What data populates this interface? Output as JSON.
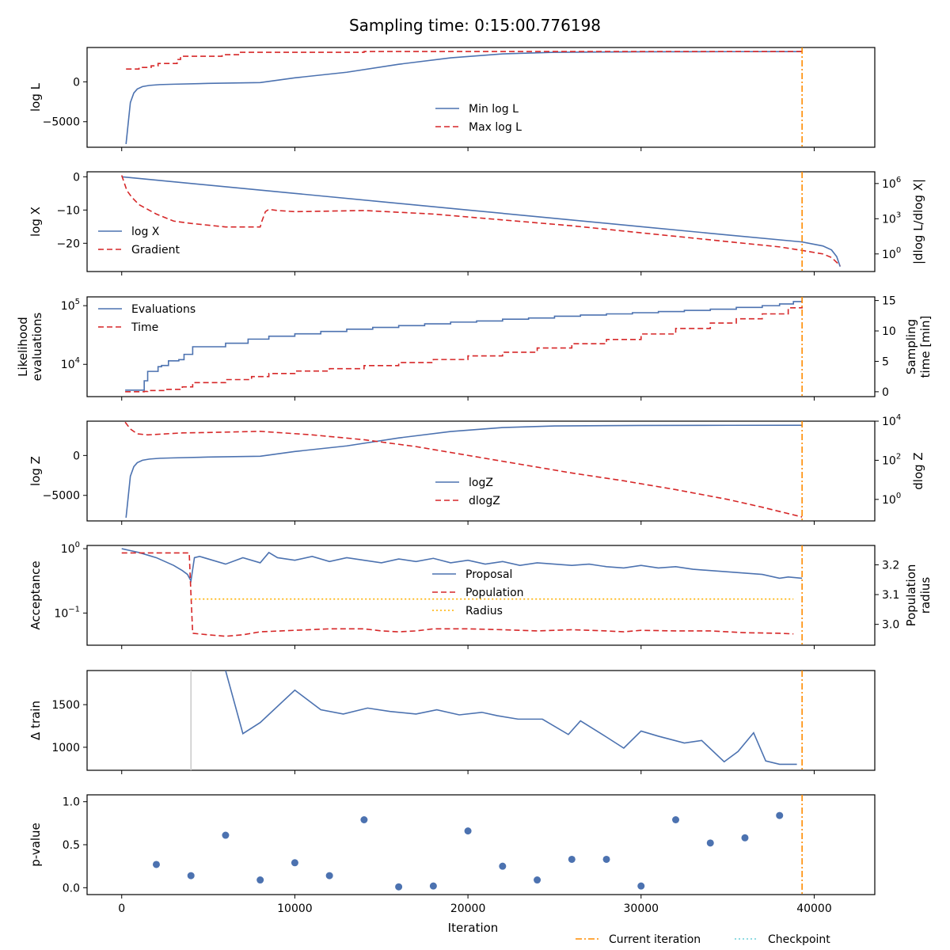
{
  "title": "Sampling time: 0:15:00.776198",
  "colors": {
    "blue": "#4c72b0",
    "red": "#d62728",
    "orange": "#ff8c00",
    "yellow": "#ffb000",
    "cyan": "#6ccfd8",
    "grey": "#c8c8c8"
  },
  "chart_data": [
    {
      "id": "logl",
      "type": "line",
      "ylabel": "log L",
      "xlim": [
        -2000,
        43500
      ],
      "ylim": [
        -8200,
        4300
      ],
      "yticks": [
        {
          "v": 0,
          "t": "0"
        },
        {
          "v": -5000,
          "t": "−5000"
        }
      ],
      "legend": {
        "position": "lower-center",
        "entries": [
          "Min log L",
          "Max log L"
        ]
      },
      "current_iteration": 39300,
      "series": [
        {
          "name": "Min log L",
          "style": "solid",
          "color": "blue",
          "x": [
            250,
            500,
            700,
            900,
            1200,
            1600,
            2200,
            3000,
            5000,
            8000,
            10000,
            13000,
            16000,
            19000,
            22000,
            25000,
            30000,
            35000,
            39300
          ],
          "y": [
            -7800,
            -2600,
            -1400,
            -900,
            -600,
            -450,
            -350,
            -300,
            -200,
            -100,
            500,
            1200,
            2200,
            3000,
            3500,
            3700,
            3760,
            3780,
            3790
          ]
        },
        {
          "name": "Max log L",
          "style": "dashed",
          "color": "red",
          "x": [
            250,
            1000,
            1000,
            1700,
            1700,
            2100,
            2100,
            3200,
            3200,
            3400,
            3400,
            5800,
            5800,
            6800,
            6800,
            14000,
            14000,
            39300
          ],
          "y": [
            1600,
            1600,
            1800,
            1800,
            2000,
            2000,
            2300,
            2300,
            2800,
            2800,
            3200,
            3200,
            3400,
            3400,
            3700,
            3700,
            3800,
            3800
          ]
        }
      ]
    },
    {
      "id": "logx",
      "type": "line",
      "ylabel": "log X",
      "ylabel2": "|dlog L/dlog X|",
      "xlim": [
        -2000,
        43500
      ],
      "ylim": [
        -28.5,
        1.5
      ],
      "yticks": [
        {
          "v": 0,
          "t": "0"
        },
        {
          "v": -10,
          "t": "−10"
        },
        {
          "v": -20,
          "t": "−20"
        }
      ],
      "y2_log": true,
      "y2lim_log10": [
        -1.5,
        7
      ],
      "y2ticks": [
        {
          "e": 6,
          "t": "10"
        },
        {
          "e": 3,
          "t": "10"
        },
        {
          "e": 0,
          "t": "10"
        }
      ],
      "legend": {
        "position": "lower-left",
        "entries": [
          "log X",
          "Gradient"
        ]
      },
      "current_iteration": 39300,
      "series": [
        {
          "name": "log X",
          "style": "solid",
          "color": "blue",
          "x": [
            0,
            5000,
            10000,
            15000,
            20000,
            25000,
            30000,
            35000,
            39300,
            40500,
            41000,
            41300,
            41500
          ],
          "y": [
            0,
            -2.5,
            -5.0,
            -7.5,
            -10.0,
            -12.5,
            -15.0,
            -17.5,
            -19.6,
            -20.8,
            -22.0,
            -24.0,
            -27.0
          ]
        },
        {
          "name": "Gradient",
          "style": "dashed",
          "color": "red",
          "axis": "y2",
          "x": [
            0,
            300,
            600,
            1000,
            2000,
            3000,
            4000,
            6000,
            8000,
            8100,
            8300,
            8500,
            9000,
            10000,
            14000,
            18000,
            22000,
            26000,
            30000,
            34000,
            38000,
            39300,
            40500,
            41000,
            41500
          ],
          "y_log10": [
            6.7,
            5.4,
            4.8,
            4.2,
            3.4,
            2.8,
            2.6,
            2.3,
            2.3,
            2.8,
            3.6,
            3.8,
            3.7,
            3.6,
            3.7,
            3.4,
            2.9,
            2.4,
            1.8,
            1.2,
            0.6,
            0.3,
            0.0,
            -0.3,
            -1.0
          ]
        }
      ]
    },
    {
      "id": "evals",
      "type": "line",
      "ylabel": "Likelihood evaluations",
      "ylabel2": "Sampling time [min]",
      "xlim": [
        -2000,
        43500
      ],
      "y_log": true,
      "ylim_log10": [
        3.45,
        5.15
      ],
      "yticks": [
        {
          "e": 5,
          "t": "10"
        },
        {
          "e": 4,
          "t": "10"
        }
      ],
      "y2lim": [
        -0.8,
        15.6
      ],
      "y2ticks": [
        {
          "v": 15,
          "t": "15"
        },
        {
          "v": 10,
          "t": "10"
        },
        {
          "v": 5,
          "t": "5"
        },
        {
          "v": 0,
          "t": "0"
        }
      ],
      "legend": {
        "position": "top-left",
        "entries": [
          "Evaluations",
          "Time"
        ]
      },
      "current_iteration": 39300,
      "series": [
        {
          "name": "Evaluations",
          "style": "steps",
          "color": "blue",
          "x": [
            200,
            1300,
            1500,
            2100,
            2300,
            2700,
            3300,
            3600,
            4100,
            6000,
            7300,
            8500,
            10000,
            11500,
            13000,
            14500,
            16000,
            17500,
            19000,
            20500,
            22000,
            23500,
            25000,
            26500,
            28000,
            29500,
            31000,
            32500,
            34000,
            35500,
            37000,
            38000,
            38800,
            39300
          ],
          "y_log10": [
            3.56,
            3.72,
            3.88,
            3.96,
            3.98,
            4.06,
            4.08,
            4.17,
            4.3,
            4.36,
            4.43,
            4.48,
            4.52,
            4.56,
            4.6,
            4.63,
            4.66,
            4.69,
            4.72,
            4.74,
            4.77,
            4.79,
            4.82,
            4.84,
            4.86,
            4.88,
            4.9,
            4.92,
            4.94,
            4.97,
            5.0,
            5.03,
            5.07,
            5.09
          ]
        },
        {
          "name": "Time",
          "style": "steps-dashed",
          "color": "red",
          "axis": "y2",
          "x": [
            200,
            1300,
            1500,
            2500,
            3500,
            4100,
            6000,
            7500,
            8500,
            10000,
            12000,
            14000,
            16000,
            18000,
            20000,
            22000,
            24000,
            26000,
            28000,
            30000,
            32000,
            34000,
            35500,
            37000,
            38500,
            39300
          ],
          "y": [
            0.0,
            0.05,
            0.2,
            0.4,
            0.8,
            1.5,
            2.0,
            2.5,
            3.0,
            3.4,
            3.8,
            4.3,
            4.8,
            5.3,
            5.9,
            6.5,
            7.2,
            7.9,
            8.6,
            9.5,
            10.4,
            11.3,
            12.0,
            12.8,
            13.8,
            15.0
          ]
        }
      ]
    },
    {
      "id": "logz",
      "type": "line",
      "ylabel": "log Z",
      "ylabel2": "dlog Z",
      "xlim": [
        -2000,
        43500
      ],
      "ylim": [
        -8200,
        4300
      ],
      "yticks": [
        {
          "v": 0,
          "t": "0"
        },
        {
          "v": -5000,
          "t": "−5000"
        }
      ],
      "y2_log": true,
      "y2lim_log10": [
        -1.1,
        4.0
      ],
      "y2ticks": [
        {
          "e": 4,
          "t": "10"
        },
        {
          "e": 2,
          "t": "10"
        },
        {
          "e": 0,
          "t": "10"
        }
      ],
      "legend": {
        "position": "lower-center",
        "entries": [
          "logZ",
          "dlogZ"
        ]
      },
      "current_iteration": 39300,
      "series": [
        {
          "name": "logZ",
          "style": "solid",
          "color": "blue",
          "x": [
            250,
            500,
            700,
            900,
            1200,
            1600,
            2200,
            3000,
            5000,
            8000,
            10000,
            13000,
            16000,
            19000,
            22000,
            25000,
            30000,
            35000,
            39300
          ],
          "y": [
            -7800,
            -2600,
            -1400,
            -900,
            -600,
            -450,
            -350,
            -300,
            -200,
            -100,
            500,
            1200,
            2200,
            3000,
            3500,
            3700,
            3760,
            3780,
            3790
          ]
        },
        {
          "name": "dlogZ",
          "style": "dashed",
          "color": "red",
          "axis": "y2",
          "x": [
            200,
            500,
            900,
            1500,
            3500,
            5000,
            8000,
            11000,
            14000,
            17000,
            20000,
            23000,
            26000,
            29000,
            32000,
            35000,
            37000,
            39300
          ],
          "y_log10": [
            3.95,
            3.6,
            3.35,
            3.3,
            3.4,
            3.42,
            3.48,
            3.3,
            3.05,
            2.7,
            2.25,
            1.8,
            1.35,
            0.95,
            0.5,
            0.0,
            -0.4,
            -0.9
          ]
        }
      ]
    },
    {
      "id": "accept",
      "type": "line",
      "ylabel": "Acceptance",
      "ylabel2": "Population radius",
      "xlim": [
        -2000,
        43500
      ],
      "y_log": true,
      "ylim_log10": [
        -1.5,
        0.05
      ],
      "yticks": [
        {
          "e": 0,
          "t": "10"
        },
        {
          "e": -1,
          "t": "10"
        }
      ],
      "y2lim": [
        2.93,
        3.265
      ],
      "y2ticks": [
        {
          "v": 3.2,
          "t": "3.2"
        },
        {
          "v": 3.1,
          "t": "3.1"
        },
        {
          "v": 3.0,
          "t": "3.0"
        }
      ],
      "legend": {
        "position": "center",
        "entries": [
          "Proposal",
          "Population",
          "Radius"
        ]
      },
      "current_iteration": 39300,
      "series": [
        {
          "name": "Proposal",
          "style": "solid",
          "color": "blue",
          "x": [
            0,
            500,
            1000,
            1500,
            2000,
            2500,
            3000,
            3500,
            3800,
            4000,
            4200,
            4500,
            5000,
            6000,
            7000,
            8000,
            8500,
            9000,
            10000,
            11000,
            12000,
            13000,
            14000,
            15000,
            16000,
            17000,
            18000,
            19000,
            20000,
            21000,
            22000,
            23000,
            24000,
            25000,
            26000,
            27000,
            28000,
            29000,
            30000,
            31000,
            32000,
            33000,
            34000,
            35000,
            36000,
            37000,
            38000,
            38500,
            39300
          ],
          "y_log10": [
            0.0,
            -0.03,
            -0.06,
            -0.1,
            -0.14,
            -0.2,
            -0.26,
            -0.34,
            -0.4,
            -0.5,
            -0.14,
            -0.12,
            -0.16,
            -0.24,
            -0.14,
            -0.22,
            -0.06,
            -0.14,
            -0.18,
            -0.12,
            -0.2,
            -0.14,
            -0.18,
            -0.22,
            -0.16,
            -0.2,
            -0.15,
            -0.22,
            -0.18,
            -0.24,
            -0.2,
            -0.26,
            -0.22,
            -0.24,
            -0.26,
            -0.24,
            -0.28,
            -0.3,
            -0.26,
            -0.3,
            -0.28,
            -0.32,
            -0.34,
            -0.36,
            -0.38,
            -0.4,
            -0.46,
            -0.44,
            -0.46
          ]
        },
        {
          "name": "Population",
          "style": "dashed",
          "color": "red",
          "axis": "y2",
          "x": [
            0,
            3900,
            4000,
            4100,
            5000,
            6000,
            7000,
            8000,
            10000,
            12000,
            14000,
            15000,
            16000,
            17000,
            18000,
            20000,
            22000,
            23000,
            24000,
            26000,
            28000,
            29000,
            30000,
            32000,
            34000,
            35000,
            36000,
            38000,
            38800
          ],
          "y": [
            3.24,
            3.24,
            3.1,
            2.97,
            2.965,
            2.96,
            2.965,
            2.975,
            2.98,
            2.985,
            2.985,
            2.978,
            2.975,
            2.978,
            2.985,
            2.985,
            2.982,
            2.98,
            2.978,
            2.982,
            2.978,
            2.975,
            2.98,
            2.978,
            2.978,
            2.975,
            2.972,
            2.97,
            2.968
          ]
        },
        {
          "name": "Radius",
          "style": "dotted",
          "color": "yellow",
          "axis": "y2",
          "x": [
            4000,
            38800
          ],
          "y": [
            3.085,
            3.085
          ]
        }
      ]
    },
    {
      "id": "dtrain",
      "type": "line",
      "ylabel": "Δ train",
      "xlim": [
        -2000,
        43500
      ],
      "ylim": [
        730,
        1900
      ],
      "yticks": [
        {
          "v": 1500,
          "t": "1500"
        },
        {
          "v": 1000,
          "t": "1000"
        }
      ],
      "checkpoint_line": 4000,
      "current_iteration": 39300,
      "series": [
        {
          "name": "Δ train",
          "style": "solid",
          "color": "blue",
          "x": [
            6000,
            7000,
            8000,
            10000,
            11500,
            12800,
            14200,
            15500,
            17000,
            18200,
            19500,
            20800,
            21700,
            22900,
            24300,
            25800,
            26500,
            28000,
            29000,
            30000,
            31000,
            32500,
            33500,
            34800,
            35600,
            36500,
            37200,
            38000,
            38800,
            39000
          ],
          "y": [
            1900,
            1160,
            1290,
            1670,
            1440,
            1390,
            1460,
            1420,
            1390,
            1440,
            1380,
            1410,
            1370,
            1330,
            1330,
            1150,
            1310,
            1120,
            990,
            1190,
            1130,
            1050,
            1080,
            830,
            950,
            1170,
            840,
            800,
            800,
            800
          ]
        }
      ]
    },
    {
      "id": "pvalue",
      "type": "scatter",
      "ylabel": "p-value",
      "xlabel": "Iteration",
      "xlim": [
        -2000,
        43500
      ],
      "ylim": [
        -0.08,
        1.08
      ],
      "yticks": [
        {
          "v": 1.0,
          "t": "1.0"
        },
        {
          "v": 0.5,
          "t": "0.5"
        },
        {
          "v": 0.0,
          "t": "0.0"
        }
      ],
      "xticks": [
        {
          "v": 0,
          "t": "0"
        },
        {
          "v": 10000,
          "t": "10000"
        },
        {
          "v": 20000,
          "t": "20000"
        },
        {
          "v": 30000,
          "t": "30000"
        },
        {
          "v": 40000,
          "t": "40000"
        }
      ],
      "current_iteration": 39300,
      "series": [
        {
          "name": "p-value",
          "style": "points",
          "color": "blue",
          "x": [
            2000,
            4000,
            6000,
            8000,
            10000,
            12000,
            14000,
            16000,
            18000,
            20000,
            22000,
            24000,
            26000,
            28000,
            30000,
            32000,
            34000,
            36000,
            38000
          ],
          "y": [
            0.27,
            0.14,
            0.61,
            0.09,
            0.29,
            0.14,
            0.79,
            0.01,
            0.02,
            0.66,
            0.25,
            0.09,
            0.33,
            0.33,
            0.02,
            0.79,
            0.52,
            0.58,
            0.84
          ]
        }
      ]
    }
  ],
  "bottom_legend": [
    "Current iteration",
    "Checkpoint"
  ]
}
